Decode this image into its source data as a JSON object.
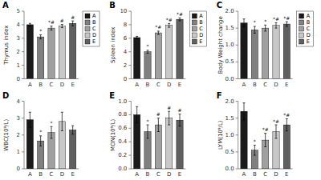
{
  "chart_data": [
    {
      "type": "bar",
      "title": "A",
      "ylabel": "Thymus index",
      "categories": [
        "A",
        "B",
        "C",
        "D",
        "E"
      ],
      "values": [
        4.0,
        3.1,
        3.75,
        3.9,
        4.1
      ],
      "errors": [
        0.1,
        0.15,
        0.15,
        0.12,
        0.18
      ],
      "colors": [
        "#1a1a1a",
        "#808080",
        "#a0a0a0",
        "#c8c8c8",
        "#606060"
      ],
      "ylim": [
        0,
        5
      ],
      "yticks": [
        0,
        1,
        2,
        3,
        4,
        5
      ],
      "annotations": [
        {
          "category": "B",
          "text": "*"
        },
        {
          "category": "C",
          "text": "*#"
        },
        {
          "category": "D",
          "text": "#"
        },
        {
          "category": "E",
          "text": "#"
        }
      ],
      "legend": "upper right"
    },
    {
      "type": "bar",
      "title": "B",
      "ylabel": "Spleen index",
      "categories": [
        "A",
        "B",
        "C",
        "D",
        "E"
      ],
      "values": [
        6.1,
        4.0,
        6.8,
        7.9,
        8.8
      ],
      "errors": [
        0.18,
        0.22,
        0.25,
        0.28,
        0.22
      ],
      "colors": [
        "#1a1a1a",
        "#808080",
        "#a0a0a0",
        "#c8c8c8",
        "#606060"
      ],
      "ylim": [
        0,
        10
      ],
      "yticks": [
        0,
        2,
        4,
        6,
        8,
        10
      ],
      "annotations": [
        {
          "category": "B",
          "text": "*"
        },
        {
          "category": "C",
          "text": "*#"
        },
        {
          "category": "D",
          "text": "*#"
        },
        {
          "category": "E",
          "text": "*#"
        }
      ],
      "legend": "upper right"
    },
    {
      "type": "bar",
      "title": "C",
      "ylabel": "Body Weight change",
      "categories": [
        "A",
        "B",
        "C",
        "D",
        "E"
      ],
      "values": [
        1.65,
        1.45,
        1.5,
        1.58,
        1.62
      ],
      "errors": [
        0.12,
        0.1,
        0.09,
        0.08,
        0.07
      ],
      "colors": [
        "#1a1a1a",
        "#808080",
        "#a0a0a0",
        "#c8c8c8",
        "#606060"
      ],
      "ylim": [
        0.0,
        2.0
      ],
      "yticks": [
        {
          "value": 0.0,
          "label": "0.0"
        },
        {
          "value": 0.5,
          "label": "0.5"
        },
        {
          "value": 1.0,
          "label": "1.0"
        },
        {
          "value": 1.5,
          "label": "1.5"
        },
        {
          "value": 2.0,
          "label": "2.0"
        }
      ],
      "annotations": [
        {
          "category": "B",
          "text": "*"
        },
        {
          "category": "C",
          "text": "*"
        },
        {
          "category": "D",
          "text": "*#"
        },
        {
          "category": "E",
          "text": "*#"
        }
      ],
      "legend": "upper right"
    },
    {
      "type": "bar",
      "title": "D",
      "ylabel": "WBC(10⁹/L)",
      "categories": [
        "A",
        "B",
        "C",
        "D",
        "E"
      ],
      "values": [
        2.9,
        1.65,
        2.15,
        2.8,
        2.3
      ],
      "errors": [
        0.45,
        0.3,
        0.35,
        0.55,
        0.25
      ],
      "colors": [
        "#1a1a1a",
        "#808080",
        "#a0a0a0",
        "#c8c8c8",
        "#606060"
      ],
      "ylim": [
        0,
        4
      ],
      "yticks": [
        0,
        1,
        2,
        3,
        4
      ],
      "annotations": [
        {
          "category": "B",
          "text": "*"
        },
        {
          "category": "C",
          "text": "*"
        }
      ]
    },
    {
      "type": "bar",
      "title": "E",
      "ylabel": "MON(10⁹/L)",
      "categories": [
        "A",
        "B",
        "C",
        "D",
        "E"
      ],
      "values": [
        0.8,
        0.55,
        0.65,
        0.75,
        0.72
      ],
      "errors": [
        0.12,
        0.1,
        0.1,
        0.1,
        0.09
      ],
      "colors": [
        "#1a1a1a",
        "#808080",
        "#a0a0a0",
        "#c8c8c8",
        "#606060"
      ],
      "ylim": [
        0.0,
        1.0
      ],
      "yticks": [
        {
          "value": 0.0,
          "label": "0.0"
        },
        0.2,
        0.4,
        0.6,
        0.8,
        {
          "value": 1.0,
          "label": "1.0"
        }
      ],
      "annotations": [
        {
          "category": "B",
          "text": "*"
        },
        {
          "category": "C",
          "text": "#"
        },
        {
          "category": "D",
          "text": "#"
        },
        {
          "category": "E",
          "text": "#"
        }
      ]
    },
    {
      "type": "bar",
      "title": "F",
      "ylabel": "LYM(10⁹/L)",
      "categories": [
        "A",
        "B",
        "C",
        "D",
        "E"
      ],
      "values": [
        1.7,
        0.55,
        0.85,
        1.1,
        1.3
      ],
      "errors": [
        0.25,
        0.15,
        0.2,
        0.2,
        0.18
      ],
      "colors": [
        "#1a1a1a",
        "#808080",
        "#a0a0a0",
        "#c8c8c8",
        "#606060"
      ],
      "ylim": [
        0.0,
        2.0
      ],
      "yticks": [
        {
          "value": 0.0,
          "label": "0.0"
        },
        {
          "value": 0.5,
          "label": "0.5"
        },
        {
          "value": 1.0,
          "label": "1.0"
        },
        {
          "value": 1.5,
          "label": "1.5"
        },
        {
          "value": 2.0,
          "label": "2.0"
        }
      ],
      "annotations": [
        {
          "category": "B",
          "text": "*"
        },
        {
          "category": "C",
          "text": "*#"
        },
        {
          "category": "D",
          "text": "*#"
        },
        {
          "category": "E",
          "text": "*#"
        }
      ]
    }
  ]
}
